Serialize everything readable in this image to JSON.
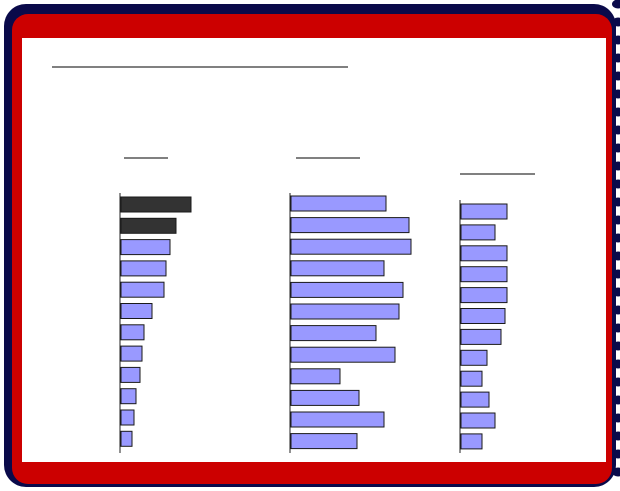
{
  "frame": {
    "outer_color": "#0a0a4a",
    "band_color": "#cc0000",
    "panel_color": "#ffffff",
    "binding": "spiral-dots"
  },
  "chart_data": [
    {
      "type": "bar",
      "orientation": "horizontal",
      "categories": [
        "",
        "",
        "",
        "",
        "",
        "",
        "",
        "",
        "",
        "",
        "",
        ""
      ],
      "values": [
        70,
        55,
        49,
        45,
        43,
        31,
        23,
        21,
        19,
        15,
        13,
        11
      ],
      "highlight_colors": [
        "#333333",
        "#333333",
        "#9999ff",
        "#9999ff",
        "#9999ff",
        "#9999ff",
        "#9999ff",
        "#9999ff",
        "#9999ff",
        "#9999ff",
        "#9999ff",
        "#9999ff"
      ]
    },
    {
      "type": "bar",
      "orientation": "horizontal",
      "categories": [
        "",
        "",
        "",
        "",
        "",
        "",
        "",
        "",
        "",
        "",
        "",
        ""
      ],
      "values": [
        95,
        118,
        120,
        93,
        112,
        108,
        85,
        104,
        49,
        68,
        93,
        66
      ],
      "highlight_colors": [
        "#9999ff",
        "#9999ff",
        "#9999ff",
        "#9999ff",
        "#9999ff",
        "#9999ff",
        "#9999ff",
        "#9999ff",
        "#9999ff",
        "#9999ff",
        "#9999ff",
        "#9999ff"
      ]
    },
    {
      "type": "bar",
      "orientation": "horizontal",
      "categories": [
        "",
        "",
        "",
        "",
        "",
        "",
        "",
        "",
        "",
        "",
        "",
        ""
      ],
      "values": [
        46,
        34,
        46,
        46,
        46,
        44,
        40,
        26,
        21,
        28,
        34,
        21
      ],
      "highlight_colors": [
        "#9999ff",
        "#9999ff",
        "#9999ff",
        "#9999ff",
        "#9999ff",
        "#9999ff",
        "#9999ff",
        "#9999ff",
        "#9999ff",
        "#9999ff",
        "#9999ff",
        "#9999ff"
      ]
    }
  ]
}
